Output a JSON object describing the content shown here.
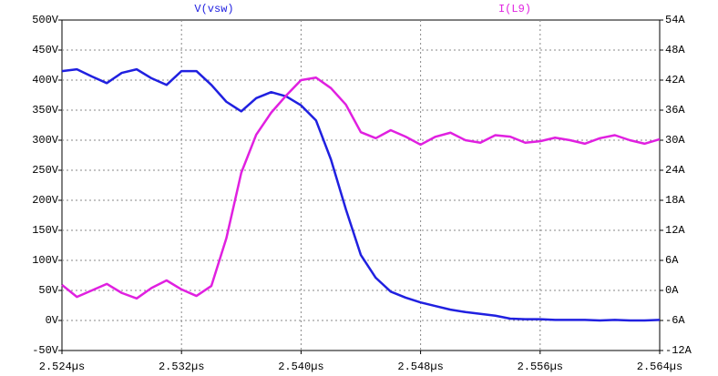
{
  "chart_data": {
    "type": "line",
    "x": [
      2.524,
      2.525,
      2.526,
      2.527,
      2.528,
      2.529,
      2.53,
      2.531,
      2.532,
      2.533,
      2.534,
      2.535,
      2.536,
      2.537,
      2.538,
      2.539,
      2.54,
      2.541,
      2.542,
      2.543,
      2.544,
      2.545,
      2.546,
      2.547,
      2.548,
      2.549,
      2.55,
      2.551,
      2.552,
      2.553,
      2.554,
      2.555,
      2.556,
      2.557,
      2.558,
      2.559,
      2.56,
      2.561,
      2.562,
      2.563,
      2.564
    ],
    "series": [
      {
        "name": "V(vsw)",
        "color": "#2020e0",
        "axis": "y",
        "values": [
          415,
          418,
          406,
          395,
          412,
          418,
          403,
          392,
          415,
          415,
          392,
          364,
          348,
          370,
          380,
          373,
          358,
          333,
          268,
          185,
          109,
          71,
          48,
          38,
          30,
          24,
          18,
          14,
          11,
          8,
          3,
          2,
          2,
          1,
          1,
          1,
          0,
          1,
          0,
          0,
          1
        ]
      },
      {
        "name": "I(L9)",
        "color": "#e020e0",
        "axis": "y2",
        "values": [
          1.1,
          -1.3,
          0,
          1.3,
          -0.5,
          -1.6,
          0.5,
          2,
          0.2,
          -1.1,
          0.9,
          10.4,
          23.5,
          31.1,
          35.5,
          38.9,
          42,
          42.5,
          40.4,
          37.1,
          31.6,
          30.4,
          32,
          30.7,
          29.1,
          30.7,
          31.5,
          30,
          29.5,
          31,
          30.7,
          29.5,
          29.8,
          30.5,
          30,
          29.3,
          30.4,
          31,
          30,
          29.3,
          30.2
        ]
      }
    ],
    "xlim": [
      2.524,
      2.564
    ],
    "xticks": [
      {
        "value": 2.524,
        "label": "2.524µs"
      },
      {
        "value": 2.532,
        "label": "2.532µs"
      },
      {
        "value": 2.54,
        "label": "2.540µs"
      },
      {
        "value": 2.548,
        "label": "2.548µs"
      },
      {
        "value": 2.556,
        "label": "2.556µs"
      },
      {
        "value": 2.564,
        "label": "2.564µs"
      }
    ],
    "ylim": [
      -50,
      500
    ],
    "yticks": [
      {
        "value": -50,
        "label": "-50V"
      },
      {
        "value": 0,
        "label": "0V"
      },
      {
        "value": 50,
        "label": "50V"
      },
      {
        "value": 100,
        "label": "100V"
      },
      {
        "value": 150,
        "label": "150V"
      },
      {
        "value": 200,
        "label": "200V"
      },
      {
        "value": 250,
        "label": "250V"
      },
      {
        "value": 300,
        "label": "300V"
      },
      {
        "value": 350,
        "label": "350V"
      },
      {
        "value": 400,
        "label": "400V"
      },
      {
        "value": 450,
        "label": "450V"
      },
      {
        "value": 500,
        "label": "500V"
      }
    ],
    "y2lim": [
      -12,
      54
    ],
    "y2ticks": [
      {
        "value": -12,
        "label": "-12A"
      },
      {
        "value": -6,
        "label": "-6A"
      },
      {
        "value": 0,
        "label": "0A"
      },
      {
        "value": 6,
        "label": "6A"
      },
      {
        "value": 12,
        "label": "12A"
      },
      {
        "value": 18,
        "label": "18A"
      },
      {
        "value": 24,
        "label": "24A"
      },
      {
        "value": 30,
        "label": "30A"
      },
      {
        "value": 36,
        "label": "36A"
      },
      {
        "value": 42,
        "label": "42A"
      },
      {
        "value": 48,
        "label": "48A"
      },
      {
        "value": 54,
        "label": "54A"
      }
    ],
    "grid": true
  }
}
